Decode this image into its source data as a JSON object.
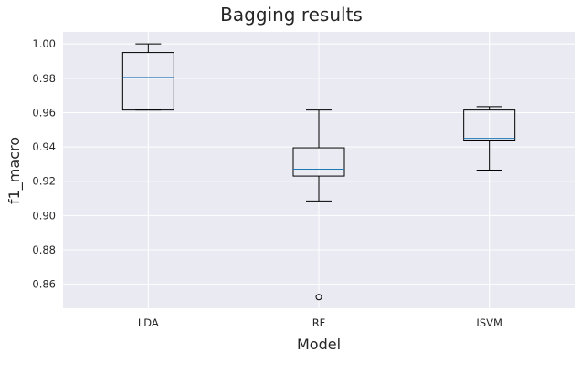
{
  "chart_data": {
    "type": "box",
    "title": "Bagging results",
    "xlabel": "Model",
    "ylabel": "f1_macro",
    "ylim": [
      0.846,
      1.007
    ],
    "yticks": [
      "0.86",
      "0.88",
      "0.90",
      "0.92",
      "0.94",
      "0.96",
      "0.98",
      "1.00"
    ],
    "grid": true,
    "categories": [
      "LDA",
      "RF",
      "ISVM"
    ],
    "boxes": [
      {
        "name": "LDA",
        "whislo": 0.9615,
        "q1": 0.9615,
        "med": 0.9805,
        "q3": 0.995,
        "whishi": 1.0,
        "fliers": []
      },
      {
        "name": "RF",
        "whislo": 0.9085,
        "q1": 0.923,
        "med": 0.927,
        "q3": 0.9395,
        "whishi": 0.9615,
        "fliers": [
          0.8525
        ]
      },
      {
        "name": "ISVM",
        "whislo": 0.9265,
        "q1": 0.9435,
        "med": 0.945,
        "q3": 0.9615,
        "whishi": 0.9635,
        "fliers": []
      }
    ],
    "colors": {
      "plot_bg": "#EAEAF2",
      "grid": "#FFFFFF",
      "box": "#000000",
      "median": "#1F77B4"
    }
  }
}
